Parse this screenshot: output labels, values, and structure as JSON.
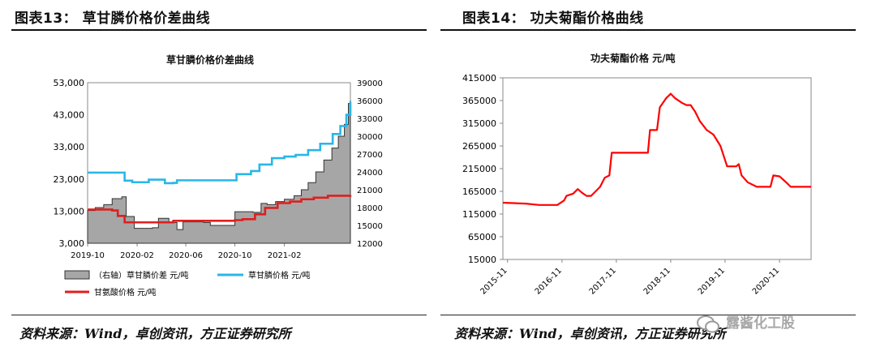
{
  "left": {
    "panel_title": "图表13： 草甘膦价格价差曲线",
    "source": "资料来源：Wind，卓创资讯，方正证券研究所"
  },
  "right": {
    "panel_title": "图表14： 功夫菊酯价格曲线",
    "source": "资料来源：Wind，卓创资讯，方正证券研究所"
  },
  "watermark": "露酱化工股",
  "colors": {
    "glyphosate": "#29b6e8",
    "glycine": "#e01e1e",
    "spread_fill": "#a6a6a6",
    "spread_edge": "#333333",
    "cyhalothrin": "#ff0000"
  },
  "chart_data": [
    {
      "type": "line",
      "title": "草甘膦价格价差曲线",
      "x_ticks": [
        "2019-10",
        "2020-02",
        "2020-06",
        "2020-10",
        "2021-02"
      ],
      "y_left": {
        "ticks": [
          "3,000",
          "13,000",
          "23,000",
          "33,000",
          "43,000",
          "53,000"
        ],
        "range": [
          3000,
          53000
        ]
      },
      "y_right": {
        "ticks": [
          "12000",
          "15000",
          "18000",
          "21000",
          "24000",
          "27000",
          "30000",
          "33000",
          "36000",
          "39000"
        ],
        "range": [
          12000,
          39000
        ]
      },
      "x_range": [
        "2019-10-01",
        "2021-07-15"
      ],
      "series": [
        {
          "name": "（右轴）草甘膦价差 元/吨",
          "type": "area",
          "axis": "right",
          "points": [
            [
              "2019-10-01",
              17500
            ],
            [
              "2019-10-20",
              18000
            ],
            [
              "2019-11-10",
              18500
            ],
            [
              "2019-12-01",
              19500
            ],
            [
              "2019-12-25",
              19800
            ],
            [
              "2020-01-05",
              16500
            ],
            [
              "2020-01-25",
              14500
            ],
            [
              "2020-02-10",
              14500
            ],
            [
              "2020-03-10",
              14600
            ],
            [
              "2020-03-25",
              16200
            ],
            [
              "2020-04-20",
              15500
            ],
            [
              "2020-05-10",
              14300
            ],
            [
              "2020-05-25",
              15600
            ],
            [
              "2020-06-20",
              15600
            ],
            [
              "2020-07-15",
              15500
            ],
            [
              "2020-08-01",
              15000
            ],
            [
              "2020-09-20",
              15000
            ],
            [
              "2020-10-01",
              17300
            ],
            [
              "2020-10-25",
              17300
            ],
            [
              "2020-11-15",
              17200
            ],
            [
              "2020-12-05",
              18700
            ],
            [
              "2020-12-20",
              18500
            ],
            [
              "2021-01-10",
              19000
            ],
            [
              "2021-02-01",
              19400
            ],
            [
              "2021-02-25",
              20000
            ],
            [
              "2021-03-15",
              21000
            ],
            [
              "2021-04-01",
              22200
            ],
            [
              "2021-04-20",
              24000
            ],
            [
              "2021-05-10",
              26000
            ],
            [
              "2021-05-30",
              28000
            ],
            [
              "2021-06-15",
              30000
            ],
            [
              "2021-06-30",
              32000
            ],
            [
              "2021-07-10",
              35500
            ],
            [
              "2021-07-15",
              36000
            ]
          ]
        },
        {
          "name": "草甘膦价格 元/吨",
          "axis": "left",
          "points": [
            [
              "2019-10-01",
              25000
            ],
            [
              "2019-12-20",
              25000
            ],
            [
              "2020-01-01",
              22500
            ],
            [
              "2020-01-20",
              22000
            ],
            [
              "2020-02-20",
              22000
            ],
            [
              "2020-03-01",
              22800
            ],
            [
              "2020-04-01",
              22800
            ],
            [
              "2020-04-10",
              21700
            ],
            [
              "2020-05-01",
              21800
            ],
            [
              "2020-05-10",
              22600
            ],
            [
              "2020-10-01",
              22600
            ],
            [
              "2020-10-05",
              24500
            ],
            [
              "2020-11-10",
              25500
            ],
            [
              "2020-12-01",
              27500
            ],
            [
              "2021-01-01",
              29500
            ],
            [
              "2021-02-01",
              30000
            ],
            [
              "2021-03-01",
              30500
            ],
            [
              "2021-04-01",
              32000
            ],
            [
              "2021-05-01",
              34000
            ],
            [
              "2021-06-01",
              37000
            ],
            [
              "2021-06-20",
              39500
            ],
            [
              "2021-07-05",
              43000
            ],
            [
              "2021-07-15",
              47000
            ]
          ]
        },
        {
          "name": "甘氨酸价格 元/吨",
          "axis": "left",
          "points": [
            [
              "2019-10-01",
              13500
            ],
            [
              "2019-12-01",
              13200
            ],
            [
              "2019-12-15",
              11500
            ],
            [
              "2020-01-01",
              9500
            ],
            [
              "2020-04-01",
              9500
            ],
            [
              "2020-05-01",
              10000
            ],
            [
              "2020-10-01",
              10200
            ],
            [
              "2020-10-20",
              10500
            ],
            [
              "2020-11-20",
              12000
            ],
            [
              "2020-12-15",
              14000
            ],
            [
              "2021-01-15",
              15500
            ],
            [
              "2021-02-15",
              16000
            ],
            [
              "2021-03-15",
              16700
            ],
            [
              "2021-04-15",
              17200
            ],
            [
              "2021-05-20",
              17800
            ],
            [
              "2021-07-15",
              18000
            ]
          ]
        }
      ]
    },
    {
      "type": "line",
      "title": "功夫菊酯价格 元/吨",
      "x_ticks": [
        "2015-11",
        "2016-11",
        "2017-11",
        "2018-11",
        "2019-11",
        "2020-11"
      ],
      "y": {
        "ticks": [
          "15000",
          "65000",
          "115000",
          "165000",
          "215000",
          "265000",
          "315000",
          "365000",
          "415000"
        ],
        "range": [
          15000,
          415000
        ]
      },
      "x_range": [
        "2015-10-01",
        "2021-06-01"
      ],
      "series": [
        {
          "name": "功夫菊酯价格",
          "points": [
            [
              "2015-10-01",
              140000
            ],
            [
              "2016-03-01",
              138000
            ],
            [
              "2016-06-01",
              135000
            ],
            [
              "2016-10-01",
              135000
            ],
            [
              "2016-11-15",
              145000
            ],
            [
              "2016-12-01",
              155000
            ],
            [
              "2017-01-15",
              160000
            ],
            [
              "2017-02-15",
              170000
            ],
            [
              "2017-03-15",
              162000
            ],
            [
              "2017-04-15",
              155000
            ],
            [
              "2017-05-15",
              155000
            ],
            [
              "2017-06-15",
              165000
            ],
            [
              "2017-07-15",
              175000
            ],
            [
              "2017-08-15",
              195000
            ],
            [
              "2017-09-15",
              200000
            ],
            [
              "2017-10-01",
              250000
            ],
            [
              "2018-06-01",
              250000
            ],
            [
              "2018-06-15",
              300000
            ],
            [
              "2018-08-01",
              300000
            ],
            [
              "2018-08-20",
              350000
            ],
            [
              "2018-10-01",
              370000
            ],
            [
              "2018-11-01",
              380000
            ],
            [
              "2018-12-01",
              370000
            ],
            [
              "2019-01-15",
              360000
            ],
            [
              "2019-02-15",
              355000
            ],
            [
              "2019-03-15",
              355000
            ],
            [
              "2019-04-15",
              340000
            ],
            [
              "2019-05-15",
              320000
            ],
            [
              "2019-07-01",
              300000
            ],
            [
              "2019-08-15",
              290000
            ],
            [
              "2019-10-01",
              265000
            ],
            [
              "2019-11-15",
              220000
            ],
            [
              "2020-01-15",
              220000
            ],
            [
              "2020-02-01",
              225000
            ],
            [
              "2020-02-20",
              200000
            ],
            [
              "2020-04-01",
              185000
            ],
            [
              "2020-06-01",
              175000
            ],
            [
              "2020-09-01",
              175000
            ],
            [
              "2020-09-20",
              200000
            ],
            [
              "2020-11-01",
              198000
            ],
            [
              "2020-12-15",
              185000
            ],
            [
              "2021-01-15",
              175000
            ],
            [
              "2021-06-01",
              175000
            ]
          ]
        }
      ]
    }
  ]
}
